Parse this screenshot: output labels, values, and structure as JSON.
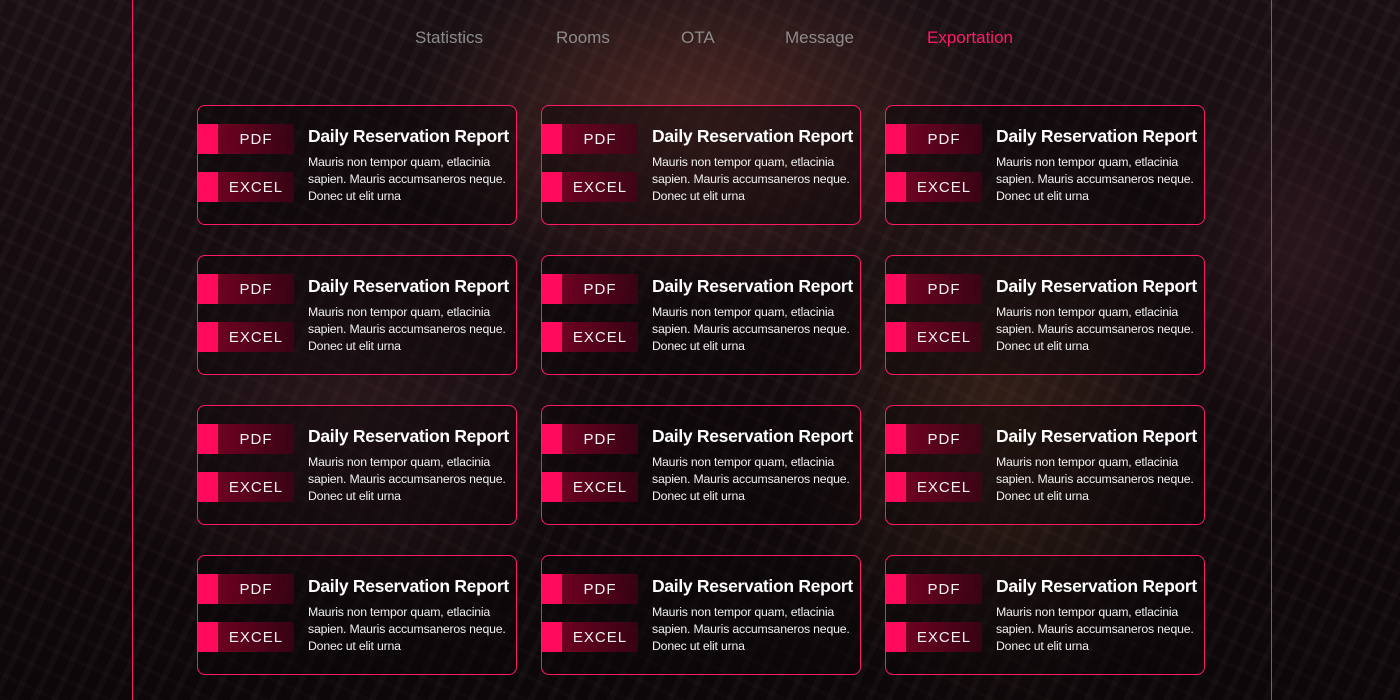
{
  "nav": {
    "items": [
      {
        "label": "Statistics",
        "active": false
      },
      {
        "label": "Rooms",
        "active": false
      },
      {
        "label": "OTA",
        "active": false
      },
      {
        "label": "Message",
        "active": false
      },
      {
        "label": "Exportation",
        "active": true
      }
    ]
  },
  "colors": {
    "accent": "#ff1a66",
    "nav_inactive": "#8c8c8c",
    "text": "#ffffff"
  },
  "reports": [
    {
      "title": "Daily Reservation Report",
      "description": "Mauris non tempor quam, etlacinia sapien. Mauris accumsaneros neque. Donec ut elit urna",
      "pdf_label": "PDF",
      "excel_label": "EXCEL"
    },
    {
      "title": "Daily Reservation Report",
      "description": "Mauris non tempor quam, etlacinia sapien. Mauris accumsaneros neque. Donec ut elit urna",
      "pdf_label": "PDF",
      "excel_label": "EXCEL"
    },
    {
      "title": "Daily Reservation Report",
      "description": "Mauris non tempor quam, etlacinia sapien. Mauris accumsaneros neque. Donec ut elit urna",
      "pdf_label": "PDF",
      "excel_label": "EXCEL"
    },
    {
      "title": "Daily Reservation Report",
      "description": "Mauris non tempor quam, etlacinia sapien. Mauris accumsaneros neque. Donec ut elit urna",
      "pdf_label": "PDF",
      "excel_label": "EXCEL"
    },
    {
      "title": "Daily Reservation Report",
      "description": "Mauris non tempor quam, etlacinia sapien. Mauris accumsaneros neque. Donec ut elit urna",
      "pdf_label": "PDF",
      "excel_label": "EXCEL"
    },
    {
      "title": "Daily Reservation Report",
      "description": "Mauris non tempor quam, etlacinia sapien. Mauris accumsaneros neque. Donec ut elit urna",
      "pdf_label": "PDF",
      "excel_label": "EXCEL"
    },
    {
      "title": "Daily Reservation Report",
      "description": "Mauris non tempor quam, etlacinia sapien. Mauris accumsaneros neque. Donec ut elit urna",
      "pdf_label": "PDF",
      "excel_label": "EXCEL"
    },
    {
      "title": "Daily Reservation Report",
      "description": "Mauris non tempor quam, etlacinia sapien. Mauris accumsaneros neque. Donec ut elit urna",
      "pdf_label": "PDF",
      "excel_label": "EXCEL"
    },
    {
      "title": "Daily Reservation Report",
      "description": "Mauris non tempor quam, etlacinia sapien. Mauris accumsaneros neque. Donec ut elit urna",
      "pdf_label": "PDF",
      "excel_label": "EXCEL"
    },
    {
      "title": "Daily Reservation Report",
      "description": "Mauris non tempor quam, etlacinia sapien. Mauris accumsaneros neque. Donec ut elit urna",
      "pdf_label": "PDF",
      "excel_label": "EXCEL"
    },
    {
      "title": "Daily Reservation Report",
      "description": "Mauris non tempor quam, etlacinia sapien. Mauris accumsaneros neque. Donec ut elit urna",
      "pdf_label": "PDF",
      "excel_label": "EXCEL"
    },
    {
      "title": "Daily Reservation Report",
      "description": "Mauris non tempor quam, etlacinia sapien. Mauris accumsaneros neque. Donec ut elit urna",
      "pdf_label": "PDF",
      "excel_label": "EXCEL"
    }
  ]
}
